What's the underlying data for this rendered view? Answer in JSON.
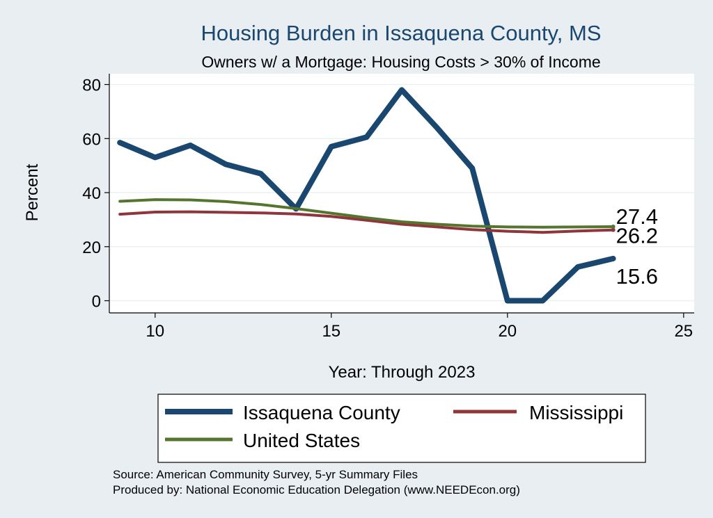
{
  "chart_data": {
    "type": "line",
    "title": "Housing Burden in Issaquena County, MS",
    "subtitle": "Owners w/ a Mortgage: Housing Costs > 30% of Income",
    "xlabel": "Year: Through 2023",
    "ylabel": "Percent",
    "xlim": [
      8.7,
      25.3
    ],
    "ylim": [
      -4.5,
      84
    ],
    "xticks": [
      10,
      15,
      20,
      25
    ],
    "yticks": [
      0,
      20,
      40,
      60,
      80
    ],
    "grid": true,
    "legend_position": "bottom",
    "series": [
      {
        "name": "Issaquena County",
        "color": "#1a476f",
        "x": [
          9,
          10,
          11,
          12,
          13,
          14,
          15,
          16,
          17,
          18,
          19,
          20,
          21,
          22,
          23
        ],
        "values": [
          58.5,
          53,
          57.5,
          50.5,
          47,
          34,
          57,
          60.5,
          78,
          64,
          49,
          0,
          0,
          12.5,
          15.6
        ],
        "end_label": "15.6"
      },
      {
        "name": "Mississippi",
        "color": "#90353b",
        "x": [
          9,
          10,
          11,
          12,
          13,
          14,
          15,
          16,
          17,
          18,
          19,
          20,
          21,
          22,
          23
        ],
        "values": [
          32,
          32.8,
          32.9,
          32.7,
          32.5,
          32.1,
          31.2,
          29.8,
          28.3,
          27.3,
          26.3,
          25.7,
          25.3,
          25.8,
          26.2
        ],
        "end_label": "26.2"
      },
      {
        "name": "United States",
        "color": "#55752f",
        "x": [
          9,
          10,
          11,
          12,
          13,
          14,
          15,
          16,
          17,
          18,
          19,
          20,
          21,
          22,
          23
        ],
        "values": [
          36.8,
          37.4,
          37.3,
          36.7,
          35.6,
          34.1,
          32.4,
          30.7,
          29.2,
          28.3,
          27.6,
          27.3,
          27.2,
          27.3,
          27.4
        ],
        "end_label": "27.4"
      }
    ],
    "source_lines": [
      "Source: American Community Survey, 5-yr Summary Files",
      "Produced by: National Economic Education Delegation (www.NEEDEcon.org)"
    ]
  }
}
